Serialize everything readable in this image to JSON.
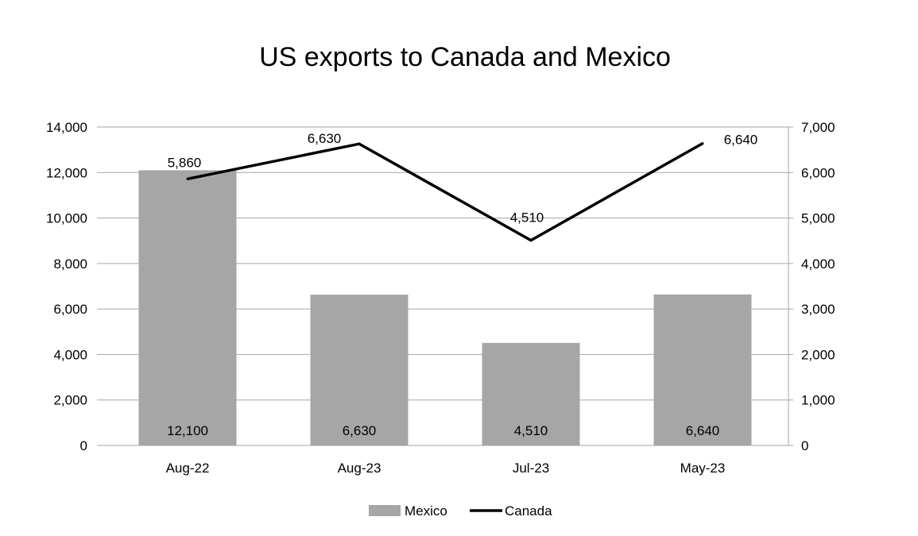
{
  "chart_data": {
    "type": "bar",
    "title": "US exports to Canada and Mexico",
    "categories": [
      "Aug-22",
      "Aug-23",
      "Jul-23",
      "May-23"
    ],
    "series": [
      {
        "name": "Mexico",
        "type": "bar",
        "axis": "left",
        "values": [
          12100,
          6630,
          4510,
          6640
        ],
        "labels": [
          "12,100",
          "6,630",
          "4,510",
          "6,640"
        ],
        "color": "#a6a6a6"
      },
      {
        "name": "Canada",
        "type": "line",
        "axis": "right",
        "values": [
          5860,
          6630,
          4510,
          6640
        ],
        "labels": [
          "5,860",
          "6,630",
          "4,510",
          "6,640"
        ],
        "color": "#000000"
      }
    ],
    "y_left": {
      "min": 0,
      "max": 14000,
      "ticks": [
        "0",
        "2,000",
        "4,000",
        "6,000",
        "8,000",
        "10,000",
        "12,000",
        "14,000"
      ]
    },
    "y_right": {
      "min": 0,
      "max": 7000,
      "ticks": [
        "0",
        "1,000",
        "2,000",
        "3,000",
        "4,000",
        "5,000",
        "6,000",
        "7,000"
      ]
    },
    "grid": true,
    "legend": "bottom",
    "gridline_color": "#a6a6a6"
  }
}
